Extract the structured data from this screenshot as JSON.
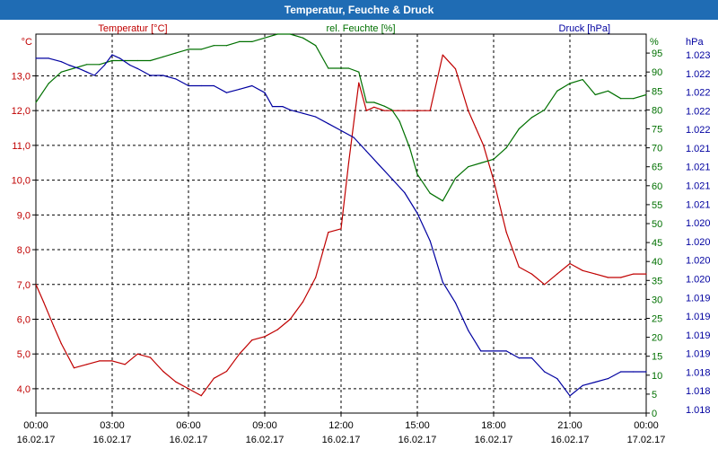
{
  "window": {
    "title": "Temperatur, Feuchte & Druck"
  },
  "colors": {
    "temperature": "#c00000",
    "humidity": "#007000",
    "pressure": "#0000a0",
    "grid": "#000000",
    "titlebar": "#1f6cb4"
  },
  "chart_data": {
    "type": "line",
    "title": "Temperatur, Feuchte & Druck",
    "grid": true,
    "x_ticks": [
      {
        "time": "00:00",
        "date": "16.02.17"
      },
      {
        "time": "03:00",
        "date": "16.02.17"
      },
      {
        "time": "06:00",
        "date": "16.02.17"
      },
      {
        "time": "09:00",
        "date": "16.02.17"
      },
      {
        "time": "12:00",
        "date": "16.02.17"
      },
      {
        "time": "15:00",
        "date": "16.02.17"
      },
      {
        "time": "18:00",
        "date": "16.02.17"
      },
      {
        "time": "21:00",
        "date": "16.02.17"
      },
      {
        "time": "00:00",
        "date": "17.02.17"
      }
    ],
    "axes": {
      "temperature": {
        "label": "Temperatur [°C]",
        "unit": "°C",
        "range": [
          3.3,
          14.2
        ],
        "ticks": [
          "13,0",
          "12,0",
          "11,0",
          "10,0",
          "9,0",
          "8,0",
          "7,0",
          "6,0",
          "5,0",
          "4,0"
        ],
        "tick_values": [
          13,
          12,
          11,
          10,
          9,
          8,
          7,
          6,
          5,
          4
        ]
      },
      "humidity": {
        "label": "rel. Feuchte [%]",
        "unit": "%",
        "range": [
          0,
          100
        ],
        "ticks": [
          "95",
          "90",
          "85",
          "80",
          "75",
          "70",
          "65",
          "60",
          "55",
          "50",
          "45",
          "40",
          "35",
          "30",
          "25",
          "20",
          "15",
          "10",
          "5",
          "0"
        ],
        "tick_values": [
          95,
          90,
          85,
          80,
          75,
          70,
          65,
          60,
          55,
          50,
          45,
          40,
          35,
          30,
          25,
          20,
          15,
          10,
          5,
          0
        ]
      },
      "pressure": {
        "label": "Druck [hPa]",
        "unit": "hPa",
        "range": [
          1.0177,
          1.0232
        ],
        "ticks": [
          "1.023",
          "1.022",
          "1.022",
          "1.022",
          "1.022",
          "1.021",
          "1.021",
          "1.021",
          "1.021",
          "1.020",
          "1.020",
          "1.020",
          "1.020",
          "1.019",
          "1.019",
          "1.019",
          "1.019",
          "1.018",
          "1.018",
          "1.018"
        ]
      }
    },
    "series": [
      {
        "name": "Temperatur",
        "axis": "temperature",
        "color": "#c00000",
        "x": [
          0,
          0.3,
          0.7,
          1.0,
          1.5,
          2.0,
          2.5,
          3.0,
          3.5,
          4.0,
          4.5,
          5.0,
          5.5,
          6.0,
          6.5,
          7.0,
          7.5,
          8.0,
          8.5,
          9.0,
          9.5,
          10.0,
          10.5,
          11.0,
          11.5,
          12.0,
          12.3,
          12.7,
          13.0,
          13.3,
          13.7,
          14.0,
          14.5,
          15.0,
          15.5,
          16.0,
          16.5,
          17.0,
          17.3,
          17.6,
          18.0,
          18.5,
          19.0,
          19.5,
          20.0,
          20.5,
          21.0,
          21.5,
          22.0,
          22.5,
          23.0,
          23.5,
          24.0
        ],
        "values": [
          7.0,
          6.5,
          5.8,
          5.3,
          4.6,
          4.7,
          4.8,
          4.8,
          4.7,
          5.0,
          4.9,
          4.5,
          4.2,
          4.0,
          3.8,
          4.3,
          4.5,
          5.0,
          5.4,
          5.5,
          5.7,
          6.0,
          6.5,
          7.2,
          8.5,
          8.6,
          10.5,
          12.8,
          12.0,
          12.1,
          12.0,
          12.0,
          12.0,
          12.0,
          12.0,
          13.6,
          13.2,
          12.0,
          11.5,
          11.0,
          10.0,
          8.5,
          7.5,
          7.3,
          7.0,
          7.3,
          7.6,
          7.4,
          7.3,
          7.2,
          7.2,
          7.3,
          7.3
        ]
      },
      {
        "name": "rel. Feuchte",
        "axis": "humidity",
        "color": "#007000",
        "x": [
          0,
          0.5,
          1.0,
          1.5,
          2.0,
          2.5,
          3.0,
          3.5,
          4.0,
          4.5,
          5.0,
          5.5,
          6.0,
          6.5,
          7.0,
          7.5,
          8.0,
          8.5,
          9.0,
          9.5,
          10.0,
          10.5,
          11.0,
          11.5,
          12.0,
          12.3,
          12.7,
          13.0,
          13.3,
          13.7,
          14.0,
          14.3,
          14.7,
          15.0,
          15.5,
          16.0,
          16.5,
          17.0,
          17.5,
          18.0,
          18.5,
          19.0,
          19.5,
          20.0,
          20.5,
          21.0,
          21.5,
          22.0,
          22.5,
          23.0,
          23.5,
          24.0
        ],
        "values": [
          82,
          87,
          90,
          91,
          92,
          92,
          93,
          93,
          93,
          93,
          94,
          95,
          96,
          96,
          97,
          97,
          98,
          98,
          99,
          100,
          100,
          99,
          97,
          91,
          91,
          91,
          90,
          82,
          82,
          81,
          80,
          77,
          70,
          63,
          58,
          56,
          62,
          65,
          66,
          67,
          70,
          75,
          78,
          80,
          85,
          87,
          88,
          84,
          85,
          83,
          83,
          84
        ]
      },
      {
        "name": "Druck",
        "axis": "pressure",
        "color": "#0000a0",
        "x": [
          0,
          0.5,
          1.0,
          1.3,
          1.7,
          2.0,
          2.3,
          2.7,
          3.0,
          3.3,
          3.7,
          4.0,
          4.5,
          5.0,
          5.5,
          6.0,
          6.5,
          7.0,
          7.5,
          8.0,
          8.5,
          9.0,
          9.3,
          9.7,
          10.0,
          10.5,
          11.0,
          11.5,
          12.0,
          12.5,
          13.0,
          13.5,
          14.0,
          14.5,
          15.0,
          15.5,
          16.0,
          16.5,
          17.0,
          17.5,
          18.0,
          18.5,
          19.0,
          19.5,
          20.0,
          20.5,
          21.0,
          21.5,
          22.0,
          22.5,
          23.0,
          23.5,
          24.0
        ],
        "values": [
          1.02285,
          1.02285,
          1.0228,
          1.02275,
          1.0227,
          1.02265,
          1.0226,
          1.02275,
          1.0229,
          1.02285,
          1.02275,
          1.0227,
          1.0226,
          1.0226,
          1.02255,
          1.02245,
          1.02245,
          1.02245,
          1.02235,
          1.0224,
          1.02245,
          1.02235,
          1.02215,
          1.02215,
          1.0221,
          1.02205,
          1.022,
          1.0219,
          1.0218,
          1.0217,
          1.0215,
          1.0213,
          1.0211,
          1.0209,
          1.0206,
          1.0202,
          1.0196,
          1.0193,
          1.0189,
          1.0186,
          1.0186,
          1.0186,
          1.0185,
          1.0185,
          1.0183,
          1.0182,
          1.01795,
          1.0181,
          1.01815,
          1.0182,
          1.0183,
          1.0183,
          1.0183
        ]
      }
    ]
  }
}
